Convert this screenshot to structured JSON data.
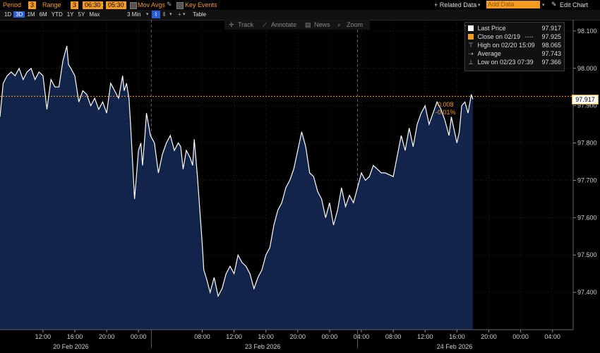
{
  "toolbar": {
    "period_label": "Period",
    "period_value": "3",
    "range_label": "Range",
    "range_value": "3",
    "time_start": "06:30",
    "time_sep": "-",
    "time_end": "05:30",
    "mov_avgs_label": "Mov Avgs",
    "key_events_label": "Key Events",
    "related_data_label": "+ Related Data",
    "add_data_placeholder": "Add Data",
    "edit_chart_label": "Edit Chart",
    "ranges": [
      "1D",
      "3D",
      "1M",
      "6M",
      "YTD",
      "1Y",
      "5Y",
      "Max"
    ],
    "active_range": "3D",
    "interval_label": "3 Min",
    "table_label": "Table"
  },
  "chart_tools": {
    "track_label": "Track",
    "annotate_label": "Annotate",
    "news_label": "News",
    "zoom_label": "Zoom"
  },
  "legend": {
    "last_price_label": "Last Price",
    "last_price_value": "97.917",
    "close_label": "Close on 02/19",
    "close_dashes": "----",
    "close_value": "97.925",
    "high_label": "High on 02/20 15:09",
    "high_value": "98.065",
    "average_label": "Average",
    "average_value": "97.743",
    "low_label": "Low on 02/23 07:39",
    "low_value": "97.366"
  },
  "price_tag": {
    "value": "97.917",
    "change": "-0.008",
    "change_pct": "-0.01%"
  },
  "colors": {
    "line": "#ffffff",
    "area_fill": "#13244a",
    "close_line": "#f59b1f",
    "accent": "#f59b1f",
    "grid": "#3a3a3a",
    "active_range": "#2b5fd9"
  },
  "chart_data": {
    "type": "area",
    "title": "",
    "xlabel": "",
    "ylabel": "",
    "ylim": [
      97.3,
      98.13
    ],
    "y_ticks": [
      "97.400",
      "97.500",
      "97.600",
      "97.700",
      "97.800",
      "97.900",
      "98.000",
      "98.100"
    ],
    "x_ticks": [
      {
        "label": "12:00",
        "hour": 12
      },
      {
        "label": "16:00",
        "hour": 16
      },
      {
        "label": "20:00",
        "hour": 20
      },
      {
        "label": "00:00",
        "hour": 24
      },
      {
        "label": "08:00",
        "hour": 32
      },
      {
        "label": "12:00",
        "hour": 36
      },
      {
        "label": "16:00",
        "hour": 40
      },
      {
        "label": "20:00",
        "hour": 44
      },
      {
        "label": "00:00",
        "hour": 48
      },
      {
        "label": "04:00",
        "hour": 52
      },
      {
        "label": "08:00",
        "hour": 56
      },
      {
        "label": "12:00",
        "hour": 60
      },
      {
        "label": "16:00",
        "hour": 64
      },
      {
        "label": "20:00",
        "hour": 68
      },
      {
        "label": "00:00",
        "hour": 72
      },
      {
        "label": "04:00",
        "hour": 76
      }
    ],
    "date_labels": [
      {
        "label": "20 Feb 2026",
        "hour": 15.5
      },
      {
        "label": "23 Feb 2026",
        "hour": 39.6
      },
      {
        "label": "24 Feb 2026",
        "hour": 63.7
      }
    ],
    "session_breaks_hour": [
      25.6,
      51.5
    ],
    "x_hour_range": [
      6.6,
      78.6
    ],
    "previous_close": 97.925,
    "series": [
      {
        "name": "Last Price",
        "hours": [
          6.6,
          7.0,
          7.5,
          8.0,
          8.5,
          9.0,
          9.5,
          10.0,
          10.5,
          11.0,
          11.5,
          12.0,
          12.5,
          13.0,
          13.5,
          14.0,
          14.5,
          15.0,
          15.2,
          15.5,
          16.0,
          16.5,
          17.0,
          17.5,
          18.0,
          18.5,
          19.0,
          19.5,
          20.0,
          20.5,
          21.0,
          21.5,
          22.0,
          22.2,
          22.5,
          22.8,
          23.0,
          23.5,
          24.0,
          24.3,
          24.5,
          24.8,
          25.0,
          25.5,
          26.0,
          26.5,
          27.0,
          27.5,
          28.0,
          28.5,
          29.0,
          29.3,
          29.6,
          30.0,
          30.5,
          30.8,
          31.0,
          31.4,
          32.0,
          32.2,
          32.5,
          33.0,
          33.5,
          34.0,
          34.5,
          35.0,
          35.5,
          36.0,
          36.5,
          37.0,
          37.5,
          38.0,
          38.5,
          39.0,
          39.5,
          40.0,
          40.5,
          41.0,
          41.5,
          42.0,
          42.5,
          43.0,
          43.5,
          44.0,
          44.5,
          45.0,
          45.5,
          46.0,
          46.5,
          47.0,
          47.5,
          48.0,
          48.5,
          49.0,
          49.5,
          50.0,
          50.5,
          51.0,
          51.5,
          52.0,
          52.5,
          53.0,
          53.5,
          54.0,
          54.5,
          55.0,
          56.0,
          57.0,
          57.5,
          58.0,
          58.5,
          59.0,
          59.5,
          60.0,
          60.5,
          61.0,
          61.5,
          62.0,
          62.5,
          63.0,
          63.3,
          63.6,
          64.0,
          64.3,
          64.6,
          65.0,
          65.4,
          65.8,
          66.0
        ],
        "values": [
          97.87,
          97.96,
          97.98,
          97.99,
          97.98,
          98.0,
          97.97,
          97.99,
          98.0,
          97.97,
          97.99,
          97.98,
          97.89,
          97.97,
          97.95,
          97.95,
          98.02,
          98.06,
          98.01,
          98.0,
          97.98,
          97.91,
          97.94,
          97.93,
          97.9,
          97.92,
          97.89,
          97.91,
          97.88,
          97.96,
          97.94,
          97.92,
          97.98,
          97.94,
          97.96,
          97.92,
          97.85,
          97.65,
          97.78,
          97.8,
          97.74,
          97.82,
          97.88,
          97.82,
          97.8,
          97.72,
          97.77,
          97.8,
          97.82,
          97.78,
          97.8,
          97.79,
          97.73,
          97.78,
          97.76,
          97.74,
          97.81,
          97.71,
          97.53,
          97.46,
          97.44,
          97.4,
          97.44,
          97.39,
          97.41,
          97.45,
          97.47,
          97.45,
          97.5,
          97.48,
          97.47,
          97.45,
          97.41,
          97.44,
          97.46,
          97.5,
          97.52,
          97.58,
          97.62,
          97.64,
          97.68,
          97.7,
          97.73,
          97.78,
          97.83,
          97.79,
          97.72,
          97.71,
          97.67,
          97.65,
          97.6,
          97.64,
          97.58,
          97.62,
          97.68,
          97.63,
          97.66,
          97.64,
          97.68,
          97.72,
          97.7,
          97.71,
          97.74,
          97.73,
          97.72,
          97.72,
          97.71,
          97.82,
          97.78,
          97.84,
          97.79,
          97.85,
          97.88,
          97.9,
          97.85,
          97.88,
          97.91,
          97.89,
          97.86,
          97.82,
          97.87,
          97.84,
          97.8,
          97.83,
          97.9,
          97.91,
          97.88,
          97.93,
          97.917
        ]
      }
    ]
  }
}
